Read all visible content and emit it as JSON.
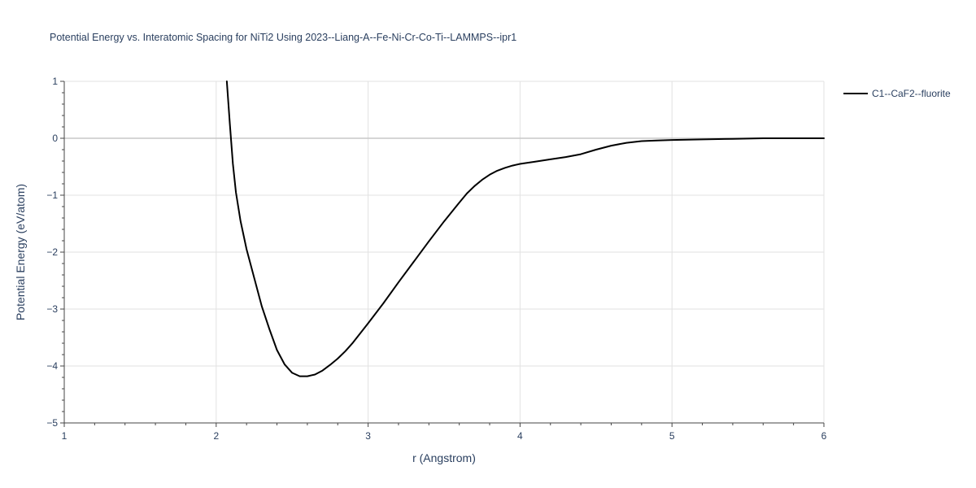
{
  "chart_data": {
    "type": "line",
    "title": "Potential Energy vs. Interatomic Spacing for NiTi2 Using 2023--Liang-A--Fe-Ni-Cr-Co-Ti--LAMMPS--ipr1",
    "xlabel": "r (Angstrom)",
    "ylabel": "Potential Energy (eV/atom)",
    "xlim": [
      1,
      6
    ],
    "ylim": [
      -5,
      1
    ],
    "x_ticks": [
      1,
      2,
      3,
      4,
      5,
      6
    ],
    "y_ticks": [
      1,
      0,
      -1,
      -2,
      -3,
      -4,
      -5
    ],
    "x_tick_labels": [
      "1",
      "2",
      "3",
      "4",
      "5",
      "6"
    ],
    "y_tick_labels": [
      "1",
      "0",
      "−1",
      "−2",
      "−3",
      "−4",
      "−5"
    ],
    "grid": true,
    "legend_position": "top-right",
    "series": [
      {
        "name": "C1--CaF2--fluorite",
        "color": "#000000",
        "x": [
          2.07,
          2.09,
          2.11,
          2.13,
          2.16,
          2.2,
          2.25,
          2.3,
          2.35,
          2.4,
          2.45,
          2.5,
          2.55,
          2.6,
          2.65,
          2.7,
          2.75,
          2.8,
          2.85,
          2.9,
          2.95,
          3.0,
          3.1,
          3.2,
          3.3,
          3.4,
          3.5,
          3.6,
          3.65,
          3.7,
          3.75,
          3.8,
          3.85,
          3.9,
          3.95,
          4.0,
          4.1,
          4.2,
          4.3,
          4.4,
          4.5,
          4.6,
          4.7,
          4.8,
          4.9,
          5.0,
          5.2,
          5.4,
          5.6,
          5.8,
          6.0
        ],
        "y": [
          1.0,
          0.25,
          -0.45,
          -0.95,
          -1.45,
          -1.95,
          -2.45,
          -2.95,
          -3.35,
          -3.72,
          -3.97,
          -4.12,
          -4.18,
          -4.18,
          -4.15,
          -4.08,
          -3.98,
          -3.87,
          -3.74,
          -3.59,
          -3.42,
          -3.25,
          -2.9,
          -2.53,
          -2.17,
          -1.81,
          -1.46,
          -1.13,
          -0.97,
          -0.84,
          -0.73,
          -0.64,
          -0.57,
          -0.52,
          -0.48,
          -0.45,
          -0.41,
          -0.37,
          -0.33,
          -0.28,
          -0.2,
          -0.13,
          -0.08,
          -0.05,
          -0.04,
          -0.03,
          -0.02,
          -0.01,
          0.0,
          0.0,
          0.0
        ]
      }
    ]
  }
}
